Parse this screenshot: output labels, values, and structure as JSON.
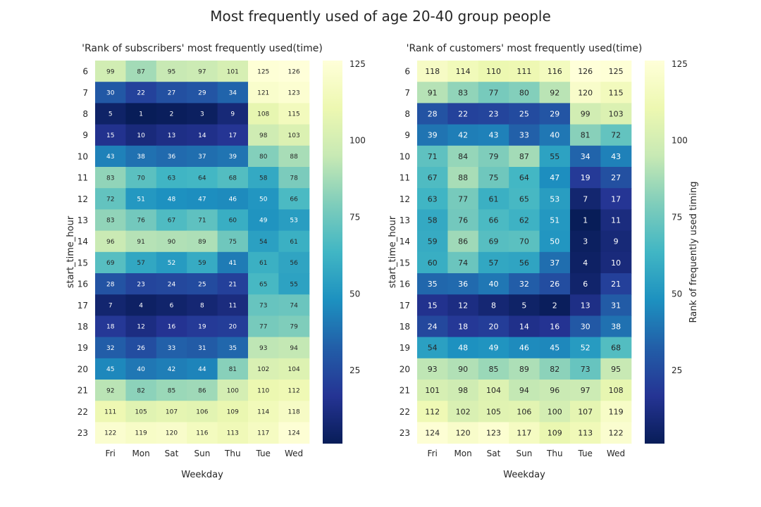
{
  "figure_title": "Most frequently used of age 20-40 group people",
  "colorscale": {
    "name": "YlGnBu_r",
    "stops": [
      "#081d58",
      "#253494",
      "#225ea8",
      "#1d91c0",
      "#41b6c4",
      "#7fcdbb",
      "#c7e9b4",
      "#edf8b1",
      "#ffffd9"
    ],
    "vmin": 1,
    "vmax": 126
  },
  "chart_data": [
    {
      "type": "heatmap",
      "title": "'Rank of subscribers' most frequently used(time)",
      "xlabel": "Weekday",
      "ylabel": "start_time_hour",
      "colorbar_label": "",
      "colorbar_ticks": [
        25,
        50,
        75,
        100,
        125
      ],
      "x": [
        "Fri",
        "Mon",
        "Sat",
        "Sun",
        "Thu",
        "Tue",
        "Wed"
      ],
      "y": [
        "6",
        "7",
        "8",
        "9",
        "10",
        "11",
        "12",
        "13",
        "14",
        "15",
        "16",
        "17",
        "18",
        "19",
        "20",
        "21",
        "22",
        "23"
      ],
      "values": [
        [
          99,
          87,
          95,
          97,
          101,
          125,
          126
        ],
        [
          30,
          22,
          27,
          29,
          34,
          121,
          123
        ],
        [
          5,
          1,
          2,
          3,
          9,
          108,
          115
        ],
        [
          15,
          10,
          13,
          14,
          17,
          98,
          103
        ],
        [
          43,
          38,
          36,
          37,
          39,
          80,
          88
        ],
        [
          83,
          70,
          63,
          64,
          68,
          58,
          78
        ],
        [
          72,
          51,
          48,
          47,
          46,
          50,
          66
        ],
        [
          83,
          76,
          67,
          71,
          60,
          49,
          53
        ],
        [
          96,
          91,
          90,
          89,
          75,
          54,
          61
        ],
        [
          69,
          57,
          52,
          59,
          41,
          61,
          56
        ],
        [
          28,
          23,
          24,
          25,
          21,
          65,
          55
        ],
        [
          7,
          4,
          6,
          8,
          11,
          73,
          74
        ],
        [
          18,
          12,
          16,
          19,
          20,
          77,
          79
        ],
        [
          32,
          26,
          33,
          31,
          35,
          93,
          94
        ],
        [
          45,
          40,
          42,
          44,
          81,
          102,
          104
        ],
        [
          92,
          82,
          85,
          86,
          100,
          110,
          112
        ],
        [
          111,
          105,
          107,
          106,
          109,
          114,
          118
        ],
        [
          122,
          119,
          120,
          116,
          113,
          117,
          124
        ]
      ]
    },
    {
      "type": "heatmap",
      "title": "'Rank of customers' most frequently used(time)",
      "xlabel": "Weekday",
      "ylabel": "start_time_hour",
      "colorbar_label": "Rank of frequently used timing",
      "colorbar_ticks": [
        25,
        50,
        75,
        100,
        125
      ],
      "x": [
        "Fri",
        "Mon",
        "Sat",
        "Sun",
        "Thu",
        "Tue",
        "Wed"
      ],
      "y": [
        "6",
        "7",
        "8",
        "9",
        "10",
        "11",
        "12",
        "13",
        "14",
        "15",
        "16",
        "17",
        "18",
        "19",
        "20",
        "21",
        "22",
        "23"
      ],
      "values": [
        [
          118,
          114,
          110,
          111,
          116,
          126,
          125
        ],
        [
          91,
          83,
          77,
          80,
          92,
          120,
          115
        ],
        [
          28,
          22,
          23,
          25,
          29,
          99,
          103
        ],
        [
          39,
          42,
          43,
          33,
          40,
          81,
          72
        ],
        [
          71,
          84,
          79,
          87,
          55,
          34,
          43
        ],
        [
          67,
          88,
          75,
          64,
          47,
          19,
          27
        ],
        [
          63,
          77,
          61,
          65,
          53,
          7,
          17
        ],
        [
          58,
          76,
          66,
          62,
          51,
          1,
          11
        ],
        [
          59,
          86,
          69,
          70,
          50,
          3,
          9
        ],
        [
          60,
          74,
          57,
          56,
          37,
          4,
          10
        ],
        [
          35,
          36,
          40,
          32,
          26,
          6,
          21
        ],
        [
          15,
          12,
          8,
          5,
          2,
          13,
          31
        ],
        [
          24,
          18,
          20,
          14,
          16,
          30,
          38
        ],
        [
          54,
          48,
          49,
          46,
          45,
          52,
          68
        ],
        [
          93,
          90,
          85,
          89,
          82,
          73,
          95
        ],
        [
          101,
          98,
          104,
          94,
          96,
          97,
          108
        ],
        [
          112,
          102,
          105,
          106,
          100,
          107,
          119
        ],
        [
          124,
          120,
          123,
          117,
          109,
          113,
          122
        ]
      ]
    }
  ]
}
